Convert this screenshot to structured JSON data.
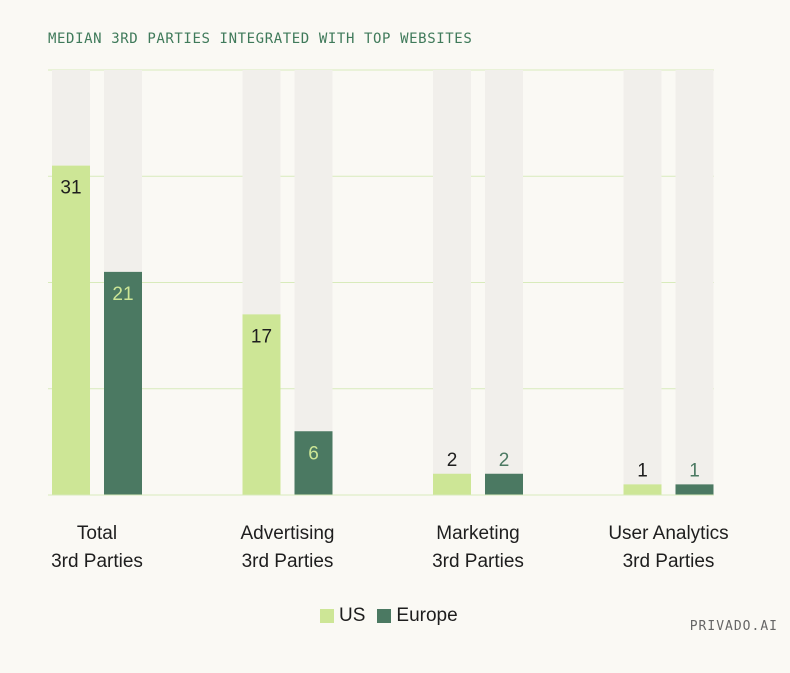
{
  "title": "MEDIAN 3RD PARTIES INTEGRATED WITH TOP WEBSITES",
  "brand": "PRIVADO.AI",
  "colors": {
    "us": "#cde696",
    "europe": "#4b7962",
    "track": "#f1efeb",
    "grid": "#d8ebbb",
    "us_label": "#1e1e1e",
    "europe_label": "#cde696",
    "europe_label_alt": "#4b7962"
  },
  "legend": [
    {
      "name": "US",
      "color": "#cde696"
    },
    {
      "name": "Europe",
      "color": "#4b7962"
    }
  ],
  "categories": [
    {
      "line1": "Total",
      "line2": "3rd Parties"
    },
    {
      "line1": "Advertising",
      "line2": "3rd Parties"
    },
    {
      "line1": "Marketing",
      "line2": "3rd Parties"
    },
    {
      "line1": "User Analytics",
      "line2": "3rd Parties"
    }
  ],
  "chart_data": {
    "type": "bar",
    "title": "MEDIAN 3RD PARTIES INTEGRATED WITH TOP WEBSITES",
    "categories": [
      "Total 3rd Parties",
      "Advertising 3rd Parties",
      "Marketing 3rd Parties",
      "User Analytics 3rd Parties"
    ],
    "series": [
      {
        "name": "US",
        "values": [
          31,
          17,
          2,
          1
        ]
      },
      {
        "name": "Europe",
        "values": [
          21,
          6,
          2,
          1
        ]
      }
    ],
    "ylim": [
      0,
      40
    ],
    "grid": true,
    "legend": "bottom-center"
  }
}
